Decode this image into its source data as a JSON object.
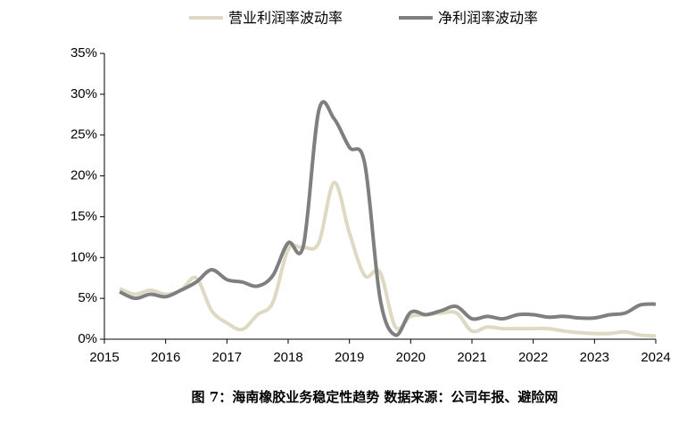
{
  "chart_data": {
    "type": "line",
    "caption": "图 7：海南橡胶业务稳定性趋势    数据来源：公司年报、避险网",
    "legend": "top",
    "x": [
      2015.25,
      2015.5,
      2015.75,
      2016.0,
      2016.25,
      2016.5,
      2016.75,
      2017.0,
      2017.25,
      2017.5,
      2017.75,
      2018.0,
      2018.25,
      2018.5,
      2018.75,
      2019.0,
      2019.25,
      2019.5,
      2019.75,
      2020.0,
      2020.25,
      2020.5,
      2020.75,
      2021.0,
      2021.25,
      2021.5,
      2021.75,
      2022.0,
      2022.25,
      2022.5,
      2022.75,
      2023.0,
      2023.25,
      2023.5,
      2023.75,
      2024.0
    ],
    "series": [
      {
        "name": "营业利润率波动率",
        "color": "#ddd9c3",
        "values": [
          6.2,
          5.5,
          6.0,
          5.5,
          6.0,
          7.5,
          3.5,
          2.0,
          1.2,
          3.0,
          4.5,
          11.0,
          11.2,
          11.8,
          19.2,
          13.0,
          7.8,
          8.2,
          1.5,
          2.8,
          3.0,
          3.2,
          3.2,
          1.0,
          1.5,
          1.3,
          1.3,
          1.3,
          1.3,
          1.0,
          0.8,
          0.7,
          0.7,
          0.9,
          0.5,
          0.4
        ]
      },
      {
        "name": "净利润率波动率",
        "color": "#7f7f7f",
        "values": [
          5.8,
          5.0,
          5.5,
          5.2,
          6.0,
          7.0,
          8.5,
          7.3,
          7.0,
          6.5,
          7.8,
          11.8,
          11.5,
          28.0,
          27.0,
          23.5,
          21.5,
          5.0,
          0.5,
          3.3,
          3.0,
          3.5,
          4.0,
          2.5,
          2.8,
          2.5,
          3.0,
          3.0,
          2.7,
          2.8,
          2.6,
          2.6,
          3.0,
          3.2,
          4.2,
          4.3
        ]
      }
    ],
    "xlim": [
      2015,
      2024
    ],
    "xticks": [
      2015,
      2016,
      2017,
      2018,
      2019,
      2020,
      2021,
      2022,
      2023,
      2024
    ],
    "ylim": [
      0,
      35
    ],
    "yticks": [
      {
        "value": 0,
        "label": "0%"
      },
      {
        "value": 5,
        "label": "5%"
      },
      {
        "value": 10,
        "label": "10%"
      },
      {
        "value": 15,
        "label": "15%"
      },
      {
        "value": 20,
        "label": "20%"
      },
      {
        "value": 25,
        "label": "25%"
      },
      {
        "value": 30,
        "label": "30%"
      },
      {
        "value": 35,
        "label": "35%"
      }
    ]
  }
}
